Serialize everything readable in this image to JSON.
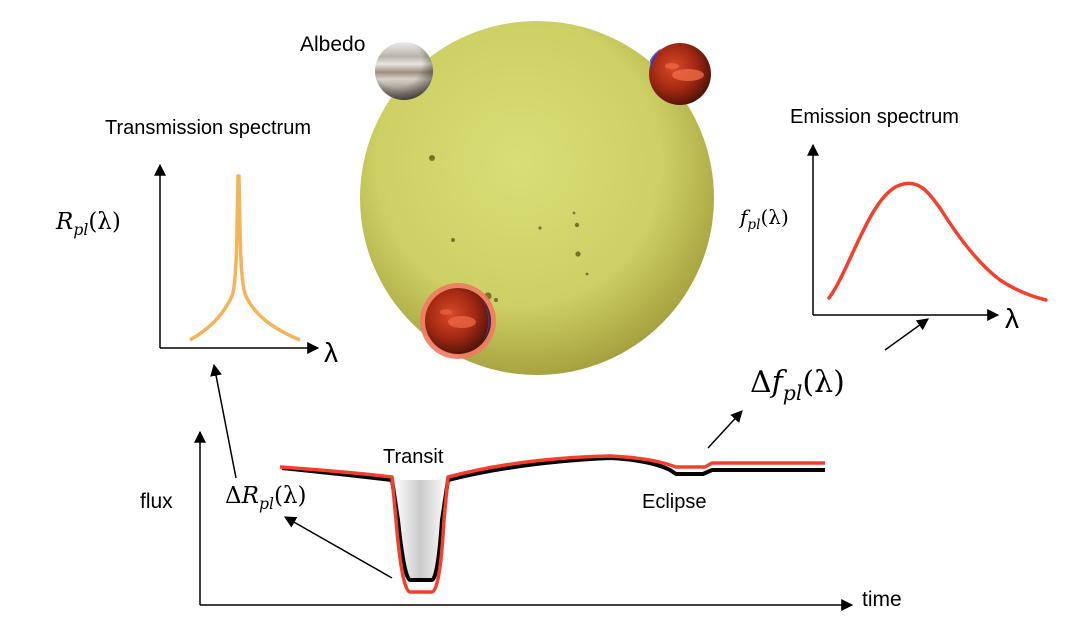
{
  "labels": {
    "albedo": "Albedo",
    "transmission_title": "Transmission spectrum",
    "emission_title": "Emission spectrum",
    "transit": "Transit",
    "eclipse": "Eclipse",
    "flux": "flux",
    "time": "time",
    "lambda": "λ"
  },
  "math": {
    "r_pl": {
      "delta": "",
      "base": "R",
      "sub": "pl",
      "arg": "(λ)"
    },
    "f_pl": {
      "delta": "",
      "base": "f",
      "sub": "pl",
      "arg": "(λ)"
    },
    "delta_r_pl": {
      "delta": "Δ",
      "base": "R",
      "sub": "pl",
      "arg": "(λ)"
    },
    "delta_f_pl": {
      "delta": "Δ",
      "base": "f",
      "sub": "pl",
      "arg": "(λ)"
    }
  },
  "colors": {
    "star_center": "#d4d86e",
    "star_edge": "#a49f3e",
    "transmission_curve": "#f4b45a",
    "emission_curve": "#f2402c",
    "lightcurve_red": "#f2402c",
    "lightcurve_black": "#000000",
    "planet_hot": "#c0361c",
    "planet_dark": "#4a1208",
    "planet_limb_blue": "#3a3aaa",
    "jupiter_band": "#9a8e80"
  },
  "icons": [
    "star-icon",
    "jupiter-planet-icon",
    "hot-planet-icon",
    "transiting-planet-icon"
  ]
}
